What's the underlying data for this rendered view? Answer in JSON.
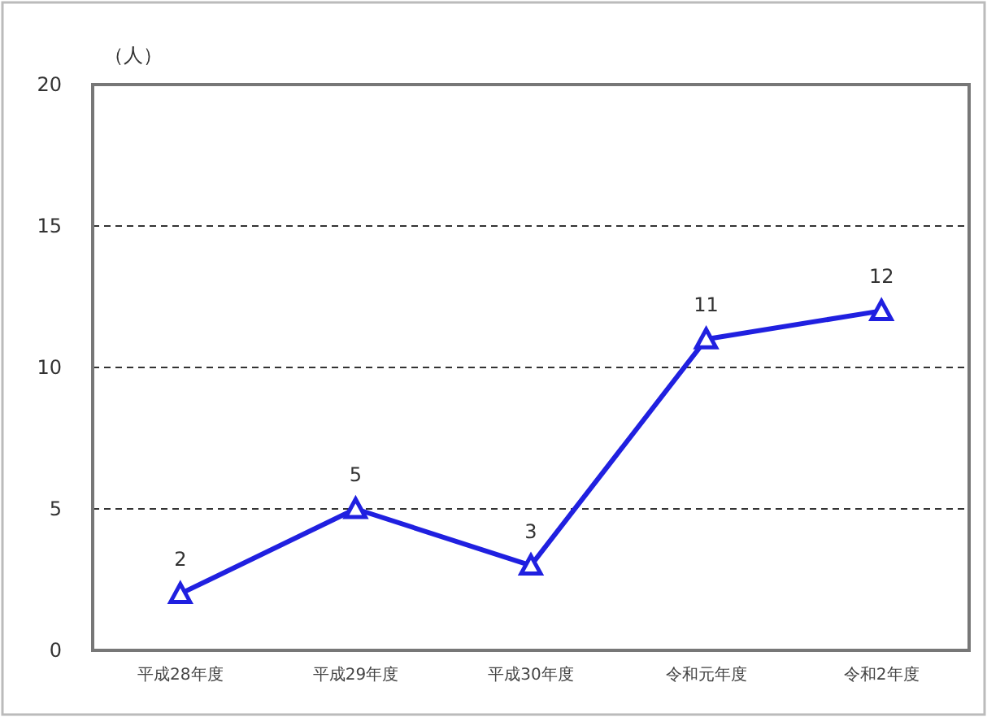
{
  "chart_data": {
    "type": "line",
    "ylabel": "（人）",
    "categories": [
      "平成28年度",
      "平成29年度",
      "平成30年度",
      "令和元年度",
      "令和2年度"
    ],
    "series": [
      {
        "color": "#2020e0",
        "values": [
          2,
          5,
          3,
          11,
          12
        ]
      }
    ],
    "ylim": [
      0,
      20
    ],
    "yticks": [
      0,
      5,
      10,
      15,
      20
    ],
    "grid": "y",
    "marker": "triangle",
    "line_style": "solid",
    "data_labels": true
  }
}
